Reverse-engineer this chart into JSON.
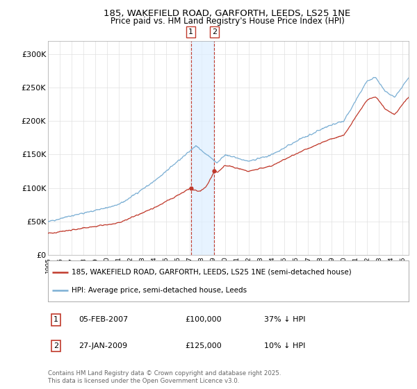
{
  "title_line1": "185, WAKEFIELD ROAD, GARFORTH, LEEDS, LS25 1NE",
  "title_line2": "Price paid vs. HM Land Registry's House Price Index (HPI)",
  "hpi_color": "#7bafd4",
  "price_color": "#c0392b",
  "vline_color": "#c0392b",
  "vshade_color": "#ddeeff",
  "ylim": [
    0,
    320000
  ],
  "yticks": [
    0,
    50000,
    100000,
    150000,
    200000,
    250000,
    300000
  ],
  "ytick_labels": [
    "£0",
    "£50K",
    "£100K",
    "£150K",
    "£200K",
    "£250K",
    "£300K"
  ],
  "legend_label_red": "185, WAKEFIELD ROAD, GARFORTH, LEEDS, LS25 1NE (semi-detached house)",
  "legend_label_blue": "HPI: Average price, semi-detached house, Leeds",
  "transaction1_date": "05-FEB-2007",
  "transaction1_price": "£100,000",
  "transaction1_note": "37% ↓ HPI",
  "transaction2_date": "27-JAN-2009",
  "transaction2_price": "£125,000",
  "transaction2_note": "10% ↓ HPI",
  "footnote": "Contains HM Land Registry data © Crown copyright and database right 2025.\nThis data is licensed under the Open Government Licence v3.0.",
  "xstart": 1995.0,
  "xend": 2025.5,
  "transaction1_x": 2007.09,
  "transaction2_x": 2009.07,
  "price_t1": 100000,
  "price_t2": 125000,
  "background_color": "#ffffff",
  "grid_color": "#e0e0e0"
}
